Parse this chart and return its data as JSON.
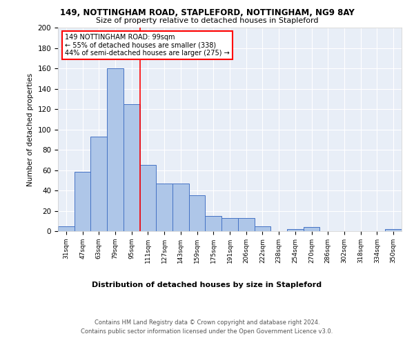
{
  "title1": "149, NOTTINGHAM ROAD, STAPLEFORD, NOTTINGHAM, NG9 8AY",
  "title2": "Size of property relative to detached houses in Stapleford",
  "xlabel": "Distribution of detached houses by size in Stapleford",
  "ylabel": "Number of detached properties",
  "categories": [
    "31sqm",
    "47sqm",
    "63sqm",
    "79sqm",
    "95sqm",
    "111sqm",
    "127sqm",
    "143sqm",
    "159sqm",
    "175sqm",
    "191sqm",
    "206sqm",
    "222sqm",
    "238sqm",
    "254sqm",
    "270sqm",
    "286sqm",
    "302sqm",
    "318sqm",
    "334sqm",
    "350sqm"
  ],
  "values": [
    5,
    58,
    93,
    160,
    125,
    65,
    47,
    47,
    35,
    15,
    13,
    13,
    5,
    0,
    2,
    4,
    0,
    0,
    0,
    0,
    2
  ],
  "bar_color": "#aec6e8",
  "bar_edge_color": "#4472c4",
  "background_color": "#e8eef7",
  "redline_x": 4.5,
  "annotation_text": "149 NOTTINGHAM ROAD: 99sqm\n← 55% of detached houses are smaller (338)\n44% of semi-detached houses are larger (275) →",
  "annotation_box_color": "white",
  "annotation_box_edge": "red",
  "ylim": [
    0,
    200
  ],
  "yticks": [
    0,
    20,
    40,
    60,
    80,
    100,
    120,
    140,
    160,
    180,
    200
  ],
  "footer1": "Contains HM Land Registry data © Crown copyright and database right 2024.",
  "footer2": "Contains public sector information licensed under the Open Government Licence v3.0."
}
